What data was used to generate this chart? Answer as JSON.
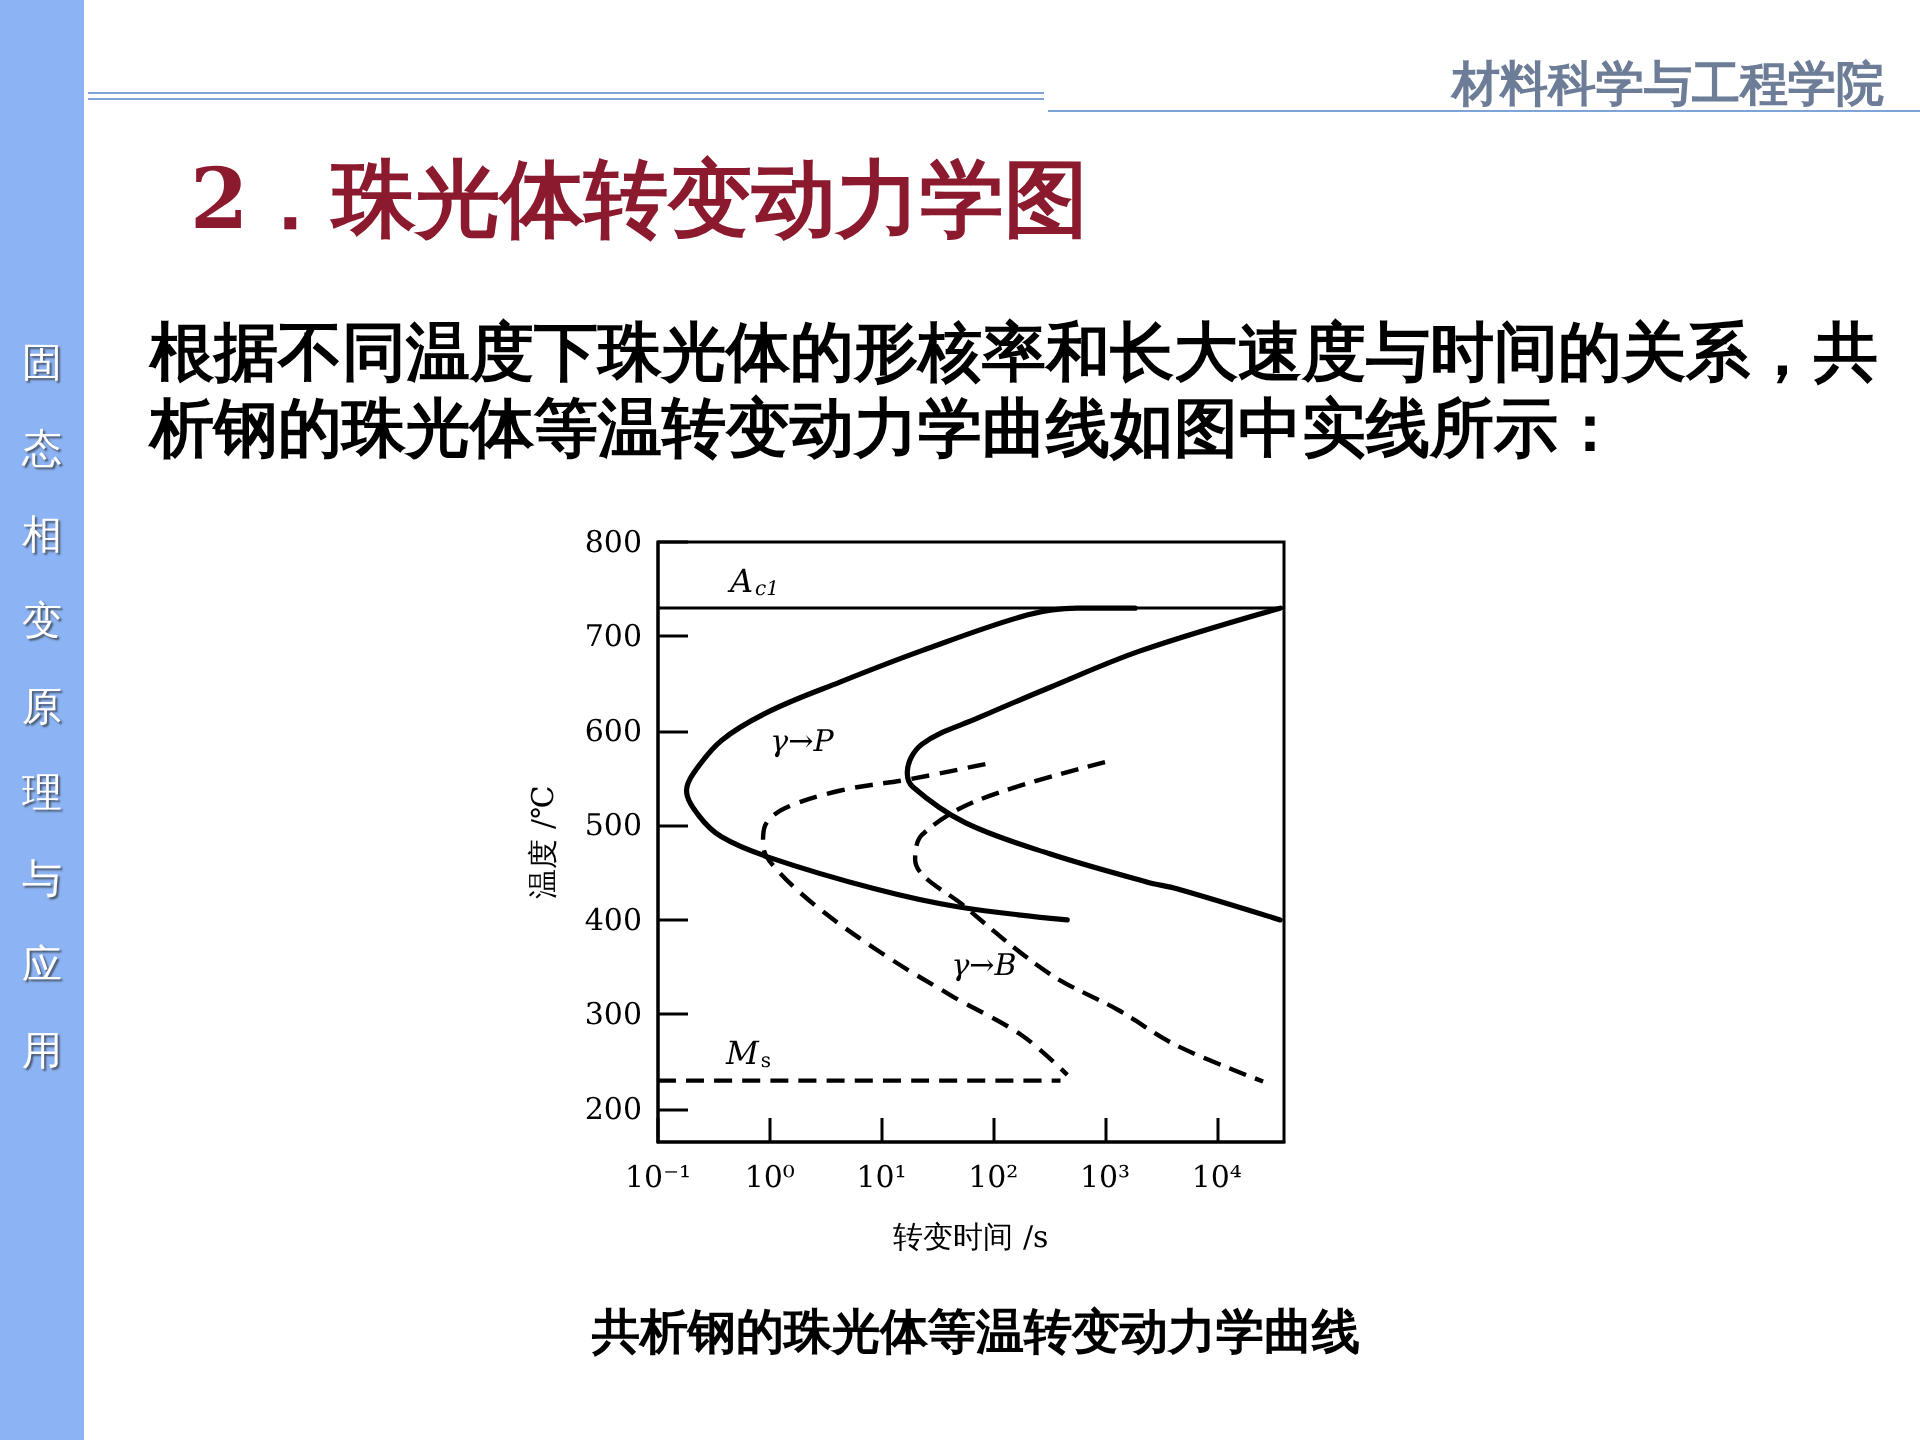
{
  "chart_data": {
    "type": "line",
    "title": "2．珠光体转变动力学图",
    "subtitle": "根据不同温度下珠光体的形核率和长大速度与时间的关系，共析钢的珠光体等温转变动力学曲线如图中实线所示：",
    "xlabel": "转变时间 /s",
    "ylabel": "温度 /℃",
    "log": "x",
    "xlim": [
      0.1,
      40000
    ],
    "xticks": [
      {
        "value": 0.1,
        "label": "10⁻¹"
      },
      {
        "value": 1,
        "label": "10⁰"
      },
      {
        "value": 10,
        "label": "10¹"
      },
      {
        "value": 100,
        "label": "10²"
      },
      {
        "value": 1000,
        "label": "10³"
      },
      {
        "value": 10000,
        "label": "10⁴"
      }
    ],
    "ylim": [
      165,
      800
    ],
    "yticks": [
      200,
      300,
      400,
      500,
      600,
      700,
      800
    ],
    "grid": false,
    "legend": false,
    "marker": "none",
    "ref_lines": [
      {
        "axis": "y",
        "value": 730,
        "label": "A$_{c1}$",
        "color": "#000000"
      }
    ],
    "series": [
      {
        "color": "#000000",
        "line_style": "solid",
        "x": [
          1860,
          565,
          205,
          23,
          4.3,
          1,
          0.37,
          0.21,
          0.18,
          0.23,
          0.37,
          1,
          8.7,
          48,
          460
        ],
        "values": [
          730,
          730,
          723,
          685,
          652,
          621,
          590,
          556,
          537,
          511,
          488,
          466,
          433,
          414,
          400
        ]
      },
      {
        "color": "#000000",
        "line_style": "solid",
        "x": [
          37000,
          2100,
          320,
          74,
          23,
          17,
          19,
          56,
          320,
          2400,
          4400,
          37000
        ],
        "values": [
          730,
          685,
          646,
          614,
          586,
          556,
          541,
          503,
          470,
          440,
          433,
          400
        ]
      },
      {
        "color": "#000000",
        "line_style": "dashed",
        "x": [
          85,
          18,
          4.3,
          1.35,
          0.91,
          0.87,
          1,
          2.4,
          10,
          42,
          180,
          460
        ],
        "values": [
          565,
          549,
          537,
          518,
          500,
          481,
          462,
          418,
          365,
          320,
          278,
          236
        ]
      },
      {
        "color": "#000000",
        "line_style": "dashed",
        "x": [
          1000,
          74,
          23,
          20,
          56,
          320,
          1300,
          4400,
          26000
        ],
        "values": [
          567,
          527,
          490,
          464,
          414,
          343,
          305,
          267,
          229
        ]
      },
      {
        "name": "M$_{s}$",
        "color": "#000000",
        "line_style": "dashed",
        "x": [
          0.1,
          400
        ],
        "values": [
          230,
          230
        ]
      }
    ],
    "annotations": [
      "材料科学与工程学院",
      "固态相变原理与应用",
      "γ→P",
      "γ→B",
      "共析钢的珠光体等温转变动力学曲线"
    ]
  }
}
